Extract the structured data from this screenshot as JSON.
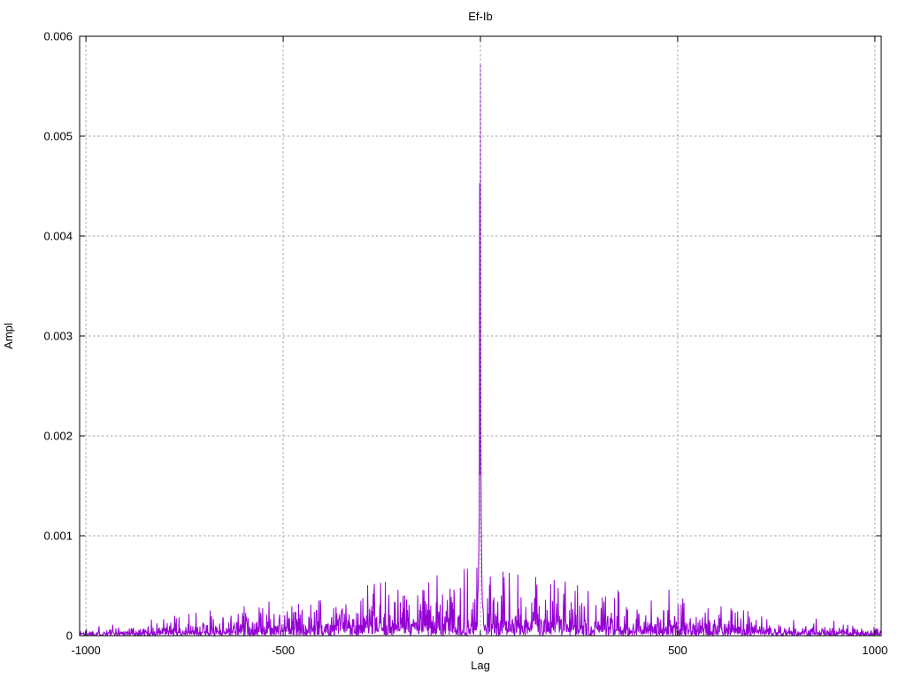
{
  "chart_data": {
    "type": "line",
    "title": "Ef-Ib",
    "xlabel": "Lag",
    "ylabel": "Ampl",
    "xlim": [
      -1016,
      1016
    ],
    "ylim": [
      0,
      0.006
    ],
    "xticks": [
      -1000,
      -500,
      0,
      500,
      1000
    ],
    "xtick_labels": [
      "-1000",
      "-500",
      "0",
      "500",
      "1000"
    ],
    "yticks": [
      0,
      0.001,
      0.002,
      0.003,
      0.004,
      0.005,
      0.006
    ],
    "ytick_labels": [
      "0",
      "0.001",
      "0.002",
      "0.003",
      "0.004",
      "0.005",
      "0.006"
    ],
    "grid": true,
    "legend": "none",
    "line_color": "#9400d3",
    "grid_color": "#a6a6a6",
    "border_color": "#000000",
    "background": "#ffffff",
    "main_peak": {
      "lag": 0,
      "ampl": 0.00572
    },
    "peak_points": [
      [
        -7,
        0.00035
      ],
      [
        -6,
        0.00045
      ],
      [
        -5,
        0.0006
      ],
      [
        -4,
        0.0009
      ],
      [
        -3,
        0.0012
      ],
      [
        -2,
        0.00453
      ],
      [
        -1,
        0.0016
      ],
      [
        0,
        0.00572
      ],
      [
        1,
        0.00218
      ],
      [
        2,
        0.0012
      ],
      [
        3,
        0.0008
      ],
      [
        4,
        0.0005
      ],
      [
        5,
        0.00032
      ],
      [
        6,
        0.00028
      ]
    ],
    "noise": {
      "seed": 1337,
      "x_start": -1016,
      "x_end": 1016,
      "x_step": 1,
      "envelope": [
        [
          -1016,
          3e-05
        ],
        [
          -850,
          4e-05
        ],
        [
          -600,
          8e-05
        ],
        [
          -400,
          0.00011
        ],
        [
          -250,
          0.00014
        ],
        [
          -100,
          0.00017
        ],
        [
          0,
          0.00018
        ],
        [
          100,
          0.00016
        ],
        [
          300,
          0.00013
        ],
        [
          450,
          0.00011
        ],
        [
          500,
          0.00013
        ],
        [
          560,
          9e-05
        ],
        [
          700,
          6e-05
        ],
        [
          900,
          4e-05
        ],
        [
          1016,
          3e-05
        ]
      ],
      "spike_cap_factor": 3.8,
      "floor": 4e-06
    }
  }
}
